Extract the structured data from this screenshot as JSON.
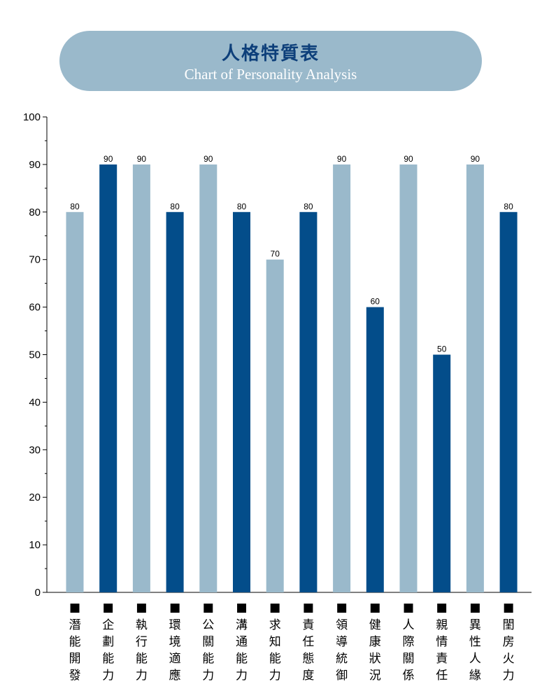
{
  "title": {
    "zh": "人格特質表",
    "en": "Chart of Personality Analysis"
  },
  "colors": {
    "light": "#9ab9cb",
    "dark": "#034d8a",
    "title_bg": "#9ab9cb"
  },
  "chart_data": {
    "type": "bar",
    "title": "人格特質表 Chart of Personality Analysis",
    "xlabel": "",
    "ylabel": "",
    "ylim": [
      0,
      100
    ],
    "yticks": [
      0,
      10,
      20,
      30,
      40,
      50,
      60,
      70,
      80,
      90,
      100
    ],
    "grid": false,
    "categories": [
      "潛能開發",
      "企劃能力",
      "執行能力",
      "環境適應",
      "公關能力",
      "溝通能力",
      "求知能力",
      "責任態度",
      "領導統御",
      "健康狀況",
      "人際關係",
      "親情責任",
      "異性人緣",
      "閨房火力"
    ],
    "values": [
      80,
      90,
      90,
      80,
      90,
      80,
      70,
      80,
      90,
      60,
      90,
      50,
      90,
      80
    ],
    "bar_shades": [
      "light",
      "dark",
      "light",
      "dark",
      "light",
      "dark",
      "light",
      "dark",
      "light",
      "dark",
      "light",
      "dark",
      "light",
      "dark"
    ],
    "data_labels": [
      "80",
      "90",
      "90",
      "80",
      "90",
      "80",
      "70",
      "80",
      "90",
      "60",
      "90",
      "50",
      "90",
      "80"
    ],
    "category_marker": "■"
  }
}
